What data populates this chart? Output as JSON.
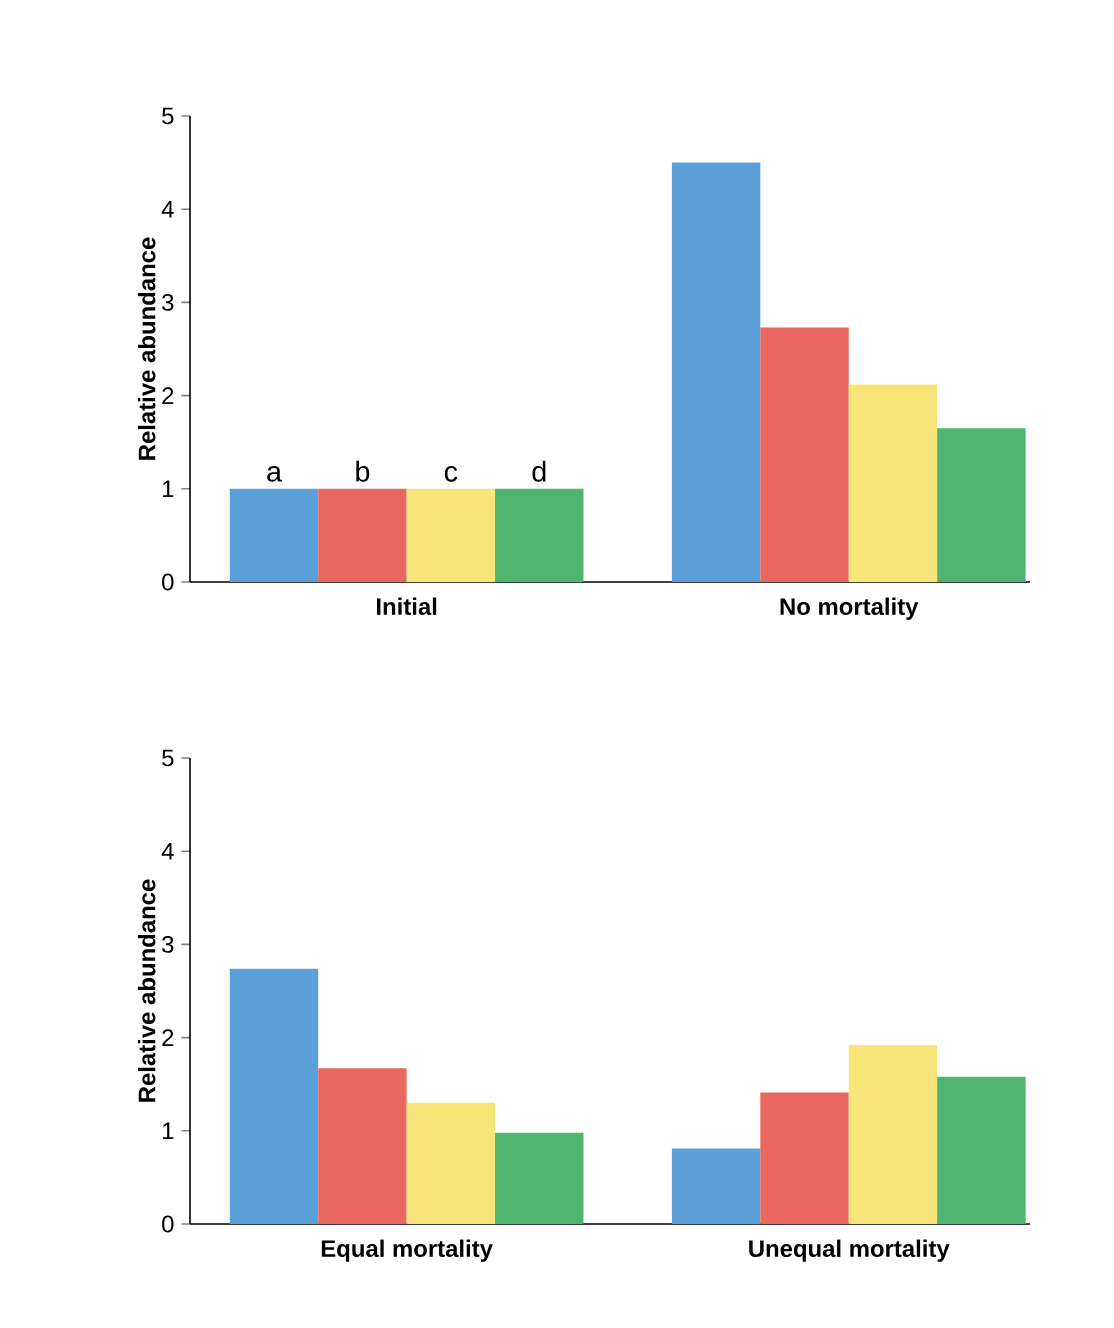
{
  "chart_data": [
    {
      "type": "bar",
      "ylabel": "Relative abundance",
      "categories": [
        "Initial",
        "No mortality"
      ],
      "ylim": [
        0,
        5
      ],
      "yticks": [
        0,
        1,
        2,
        3,
        4,
        5
      ],
      "series": [
        {
          "name": "a",
          "color": "#5b9fd9",
          "values": [
            1,
            4.5
          ]
        },
        {
          "name": "b",
          "color": "#e8675e",
          "values": [
            1,
            2.73
          ]
        },
        {
          "name": "c",
          "color": "#f8e57a",
          "values": [
            1,
            2.12
          ]
        },
        {
          "name": "d",
          "color": "#4db56f",
          "values": [
            1,
            1.65
          ]
        }
      ]
    },
    {
      "type": "bar",
      "ylabel": "Relative abundance",
      "categories": [
        "Equal mortality",
        "Unequal mortality"
      ],
      "ylim": [
        0,
        5
      ],
      "yticks": [
        0,
        1,
        2,
        3,
        4,
        5
      ],
      "series": [
        {
          "color": "#5b9fd9",
          "values": [
            2.74,
            0.81
          ]
        },
        {
          "color": "#e8675e",
          "values": [
            1.67,
            1.41
          ]
        },
        {
          "color": "#f8e57a",
          "values": [
            1.3,
            1.92
          ]
        },
        {
          "color": "#4db56f",
          "values": [
            0.98,
            1.58
          ]
        }
      ]
    }
  ]
}
